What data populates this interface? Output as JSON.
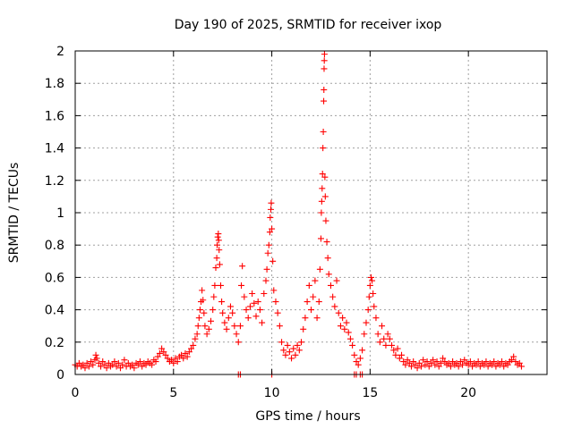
{
  "chart_data": {
    "type": "scatter",
    "title": "Day 190 of 2025, SRMTID for receiver ixop",
    "xlabel": "GPS time / hours",
    "ylabel": "SRMTID / TECUs",
    "xlim": [
      0,
      24
    ],
    "ylim": [
      0,
      2
    ],
    "xticks": [
      0,
      5,
      10,
      15,
      20
    ],
    "xtick_labels": [
      "0",
      "5",
      "10",
      "15",
      "20"
    ],
    "yticks": [
      0,
      0.2,
      0.4,
      0.6,
      0.8,
      1,
      1.2,
      1.4,
      1.6,
      1.8,
      2
    ],
    "ytick_labels": [
      "0",
      "0.2",
      "0.4",
      "0.6",
      "0.8",
      "1",
      "1.2",
      "1.4",
      "1.6",
      "1.8",
      "2"
    ],
    "grid": true,
    "marker": "plus",
    "series": [
      {
        "name": "SRMTID",
        "color": "#ff0000",
        "points": [
          [
            0.0,
            0.06
          ],
          [
            0.1,
            0.05
          ],
          [
            0.2,
            0.07
          ],
          [
            0.3,
            0.05
          ],
          [
            0.4,
            0.06
          ],
          [
            0.5,
            0.04
          ],
          [
            0.6,
            0.07
          ],
          [
            0.7,
            0.05
          ],
          [
            0.8,
            0.08
          ],
          [
            0.9,
            0.06
          ],
          [
            1.0,
            0.09
          ],
          [
            1.05,
            0.12
          ],
          [
            1.1,
            0.1
          ],
          [
            1.2,
            0.07
          ],
          [
            1.3,
            0.05
          ],
          [
            1.4,
            0.08
          ],
          [
            1.5,
            0.06
          ],
          [
            1.6,
            0.04
          ],
          [
            1.7,
            0.07
          ],
          [
            1.8,
            0.05
          ],
          [
            1.9,
            0.06
          ],
          [
            2.0,
            0.08
          ],
          [
            2.1,
            0.05
          ],
          [
            2.2,
            0.07
          ],
          [
            2.3,
            0.04
          ],
          [
            2.4,
            0.06
          ],
          [
            2.5,
            0.09
          ],
          [
            2.6,
            0.05
          ],
          [
            2.7,
            0.07
          ],
          [
            2.8,
            0.05
          ],
          [
            2.9,
            0.06
          ],
          [
            3.0,
            0.04
          ],
          [
            3.1,
            0.07
          ],
          [
            3.2,
            0.06
          ],
          [
            3.3,
            0.08
          ],
          [
            3.4,
            0.05
          ],
          [
            3.5,
            0.07
          ],
          [
            3.6,
            0.06
          ],
          [
            3.7,
            0.08
          ],
          [
            3.8,
            0.07
          ],
          [
            3.9,
            0.06
          ],
          [
            4.0,
            0.09
          ],
          [
            4.1,
            0.08
          ],
          [
            4.2,
            0.11
          ],
          [
            4.3,
            0.13
          ],
          [
            4.4,
            0.16
          ],
          [
            4.5,
            0.14
          ],
          [
            4.6,
            0.12
          ],
          [
            4.7,
            0.1
          ],
          [
            4.8,
            0.08
          ],
          [
            4.9,
            0.09
          ],
          [
            5.0,
            0.07
          ],
          [
            5.1,
            0.1
          ],
          [
            5.2,
            0.08
          ],
          [
            5.3,
            0.11
          ],
          [
            5.4,
            0.12
          ],
          [
            5.5,
            0.1
          ],
          [
            5.6,
            0.13
          ],
          [
            5.7,
            0.11
          ],
          [
            5.8,
            0.14
          ],
          [
            5.9,
            0.16
          ],
          [
            6.0,
            0.18
          ],
          [
            6.1,
            0.22
          ],
          [
            6.2,
            0.25
          ],
          [
            6.25,
            0.3
          ],
          [
            6.3,
            0.35
          ],
          [
            6.35,
            0.4
          ],
          [
            6.4,
            0.45
          ],
          [
            6.45,
            0.52
          ],
          [
            6.5,
            0.46
          ],
          [
            6.55,
            0.38
          ],
          [
            6.6,
            0.3
          ],
          [
            6.7,
            0.25
          ],
          [
            6.8,
            0.28
          ],
          [
            6.9,
            0.33
          ],
          [
            7.0,
            0.4
          ],
          [
            7.05,
            0.48
          ],
          [
            7.1,
            0.55
          ],
          [
            7.15,
            0.66
          ],
          [
            7.2,
            0.72
          ],
          [
            7.22,
            0.8
          ],
          [
            7.25,
            0.85
          ],
          [
            7.28,
            0.87
          ],
          [
            7.3,
            0.83
          ],
          [
            7.32,
            0.77
          ],
          [
            7.35,
            0.68
          ],
          [
            7.4,
            0.55
          ],
          [
            7.45,
            0.45
          ],
          [
            7.5,
            0.38
          ],
          [
            7.6,
            0.32
          ],
          [
            7.7,
            0.28
          ],
          [
            7.8,
            0.35
          ],
          [
            7.9,
            0.42
          ],
          [
            8.0,
            0.38
          ],
          [
            8.1,
            0.3
          ],
          [
            8.2,
            0.25
          ],
          [
            8.3,
            0.2
          ],
          [
            8.4,
            0.3
          ],
          [
            8.45,
            0.55
          ],
          [
            8.5,
            0.67
          ],
          [
            8.6,
            0.48
          ],
          [
            8.7,
            0.4
          ],
          [
            8.8,
            0.35
          ],
          [
            8.9,
            0.42
          ],
          [
            9.0,
            0.5
          ],
          [
            9.1,
            0.44
          ],
          [
            9.2,
            0.36
          ],
          [
            9.3,
            0.45
          ],
          [
            9.4,
            0.4
          ],
          [
            9.5,
            0.32
          ],
          [
            9.6,
            0.5
          ],
          [
            9.7,
            0.58
          ],
          [
            9.75,
            0.65
          ],
          [
            9.8,
            0.75
          ],
          [
            9.85,
            0.8
          ],
          [
            9.9,
            0.88
          ],
          [
            9.92,
            0.97
          ],
          [
            9.95,
            1.02
          ],
          [
            9.97,
            1.06
          ],
          [
            10.0,
            0.9
          ],
          [
            10.05,
            0.7
          ],
          [
            10.1,
            0.52
          ],
          [
            10.2,
            0.45
          ],
          [
            10.3,
            0.38
          ],
          [
            10.4,
            0.3
          ],
          [
            10.5,
            0.2
          ],
          [
            10.6,
            0.15
          ],
          [
            10.7,
            0.12
          ],
          [
            10.8,
            0.18
          ],
          [
            10.9,
            0.14
          ],
          [
            11.0,
            0.1
          ],
          [
            11.1,
            0.16
          ],
          [
            11.2,
            0.12
          ],
          [
            11.3,
            0.18
          ],
          [
            11.4,
            0.15
          ],
          [
            11.5,
            0.2
          ],
          [
            11.6,
            0.28
          ],
          [
            11.7,
            0.35
          ],
          [
            11.8,
            0.45
          ],
          [
            11.9,
            0.55
          ],
          [
            12.0,
            0.4
          ],
          [
            12.1,
            0.48
          ],
          [
            12.2,
            0.58
          ],
          [
            12.3,
            0.35
          ],
          [
            12.4,
            0.45
          ],
          [
            12.45,
            0.65
          ],
          [
            12.5,
            0.84
          ],
          [
            12.52,
            1.0
          ],
          [
            12.54,
            1.07
          ],
          [
            12.56,
            1.15
          ],
          [
            12.58,
            1.24
          ],
          [
            12.6,
            1.4
          ],
          [
            12.62,
            1.5
          ],
          [
            12.64,
            1.69
          ],
          [
            12.65,
            1.76
          ],
          [
            12.66,
            1.89
          ],
          [
            12.67,
            1.94
          ],
          [
            12.68,
            1.98
          ],
          [
            12.7,
            1.22
          ],
          [
            12.72,
            1.1
          ],
          [
            12.75,
            0.95
          ],
          [
            12.8,
            0.82
          ],
          [
            12.85,
            0.72
          ],
          [
            12.9,
            0.62
          ],
          [
            13.0,
            0.55
          ],
          [
            13.1,
            0.48
          ],
          [
            13.2,
            0.42
          ],
          [
            13.3,
            0.58
          ],
          [
            13.4,
            0.38
          ],
          [
            13.5,
            0.3
          ],
          [
            13.6,
            0.35
          ],
          [
            13.7,
            0.28
          ],
          [
            13.8,
            0.32
          ],
          [
            13.9,
            0.26
          ],
          [
            14.0,
            0.22
          ],
          [
            14.1,
            0.18
          ],
          [
            14.2,
            0.12
          ],
          [
            14.3,
            0.08
          ],
          [
            14.4,
            0.06
          ],
          [
            14.5,
            0.1
          ],
          [
            14.6,
            0.15
          ],
          [
            14.7,
            0.25
          ],
          [
            14.8,
            0.32
          ],
          [
            14.9,
            0.4
          ],
          [
            14.95,
            0.48
          ],
          [
            15.0,
            0.55
          ],
          [
            15.05,
            0.6
          ],
          [
            15.1,
            0.58
          ],
          [
            15.15,
            0.5
          ],
          [
            15.2,
            0.42
          ],
          [
            15.3,
            0.35
          ],
          [
            15.4,
            0.25
          ],
          [
            15.5,
            0.2
          ],
          [
            15.6,
            0.3
          ],
          [
            15.7,
            0.22
          ],
          [
            15.8,
            0.18
          ],
          [
            15.9,
            0.25
          ],
          [
            16.0,
            0.22
          ],
          [
            16.1,
            0.18
          ],
          [
            16.2,
            0.15
          ],
          [
            16.3,
            0.12
          ],
          [
            16.4,
            0.16
          ],
          [
            16.5,
            0.1
          ],
          [
            16.6,
            0.12
          ],
          [
            16.7,
            0.08
          ],
          [
            16.8,
            0.06
          ],
          [
            16.9,
            0.09
          ],
          [
            17.0,
            0.07
          ],
          [
            17.1,
            0.05
          ],
          [
            17.2,
            0.08
          ],
          [
            17.3,
            0.06
          ],
          [
            17.4,
            0.04
          ],
          [
            17.5,
            0.07
          ],
          [
            17.6,
            0.05
          ],
          [
            17.7,
            0.09
          ],
          [
            17.8,
            0.06
          ],
          [
            17.9,
            0.08
          ],
          [
            18.0,
            0.05
          ],
          [
            18.1,
            0.07
          ],
          [
            18.2,
            0.09
          ],
          [
            18.3,
            0.06
          ],
          [
            18.4,
            0.08
          ],
          [
            18.5,
            0.05
          ],
          [
            18.6,
            0.07
          ],
          [
            18.7,
            0.1
          ],
          [
            18.8,
            0.08
          ],
          [
            18.9,
            0.06
          ],
          [
            19.0,
            0.07
          ],
          [
            19.1,
            0.05
          ],
          [
            19.2,
            0.08
          ],
          [
            19.3,
            0.06
          ],
          [
            19.4,
            0.07
          ],
          [
            19.5,
            0.05
          ],
          [
            19.6,
            0.08
          ],
          [
            19.7,
            0.06
          ],
          [
            19.8,
            0.09
          ],
          [
            19.9,
            0.07
          ],
          [
            20.0,
            0.06
          ],
          [
            20.1,
            0.08
          ],
          [
            20.2,
            0.05
          ],
          [
            20.3,
            0.07
          ],
          [
            20.4,
            0.06
          ],
          [
            20.5,
            0.08
          ],
          [
            20.6,
            0.05
          ],
          [
            20.7,
            0.07
          ],
          [
            20.8,
            0.06
          ],
          [
            20.9,
            0.08
          ],
          [
            21.0,
            0.05
          ],
          [
            21.1,
            0.07
          ],
          [
            21.2,
            0.06
          ],
          [
            21.3,
            0.08
          ],
          [
            21.4,
            0.05
          ],
          [
            21.5,
            0.07
          ],
          [
            21.6,
            0.06
          ],
          [
            21.7,
            0.08
          ],
          [
            21.8,
            0.05
          ],
          [
            21.9,
            0.07
          ],
          [
            22.0,
            0.06
          ],
          [
            22.1,
            0.08
          ],
          [
            22.2,
            0.09
          ],
          [
            22.3,
            0.11
          ],
          [
            22.4,
            0.08
          ],
          [
            22.5,
            0.06
          ],
          [
            22.6,
            0.07
          ],
          [
            22.7,
            0.05
          ],
          [
            8.3,
            0.0
          ],
          [
            8.4,
            0.0
          ],
          [
            10.0,
            0.0
          ],
          [
            14.2,
            0.0
          ],
          [
            14.3,
            0.0
          ],
          [
            14.5,
            0.0
          ],
          [
            14.6,
            0.0
          ]
        ]
      }
    ]
  }
}
